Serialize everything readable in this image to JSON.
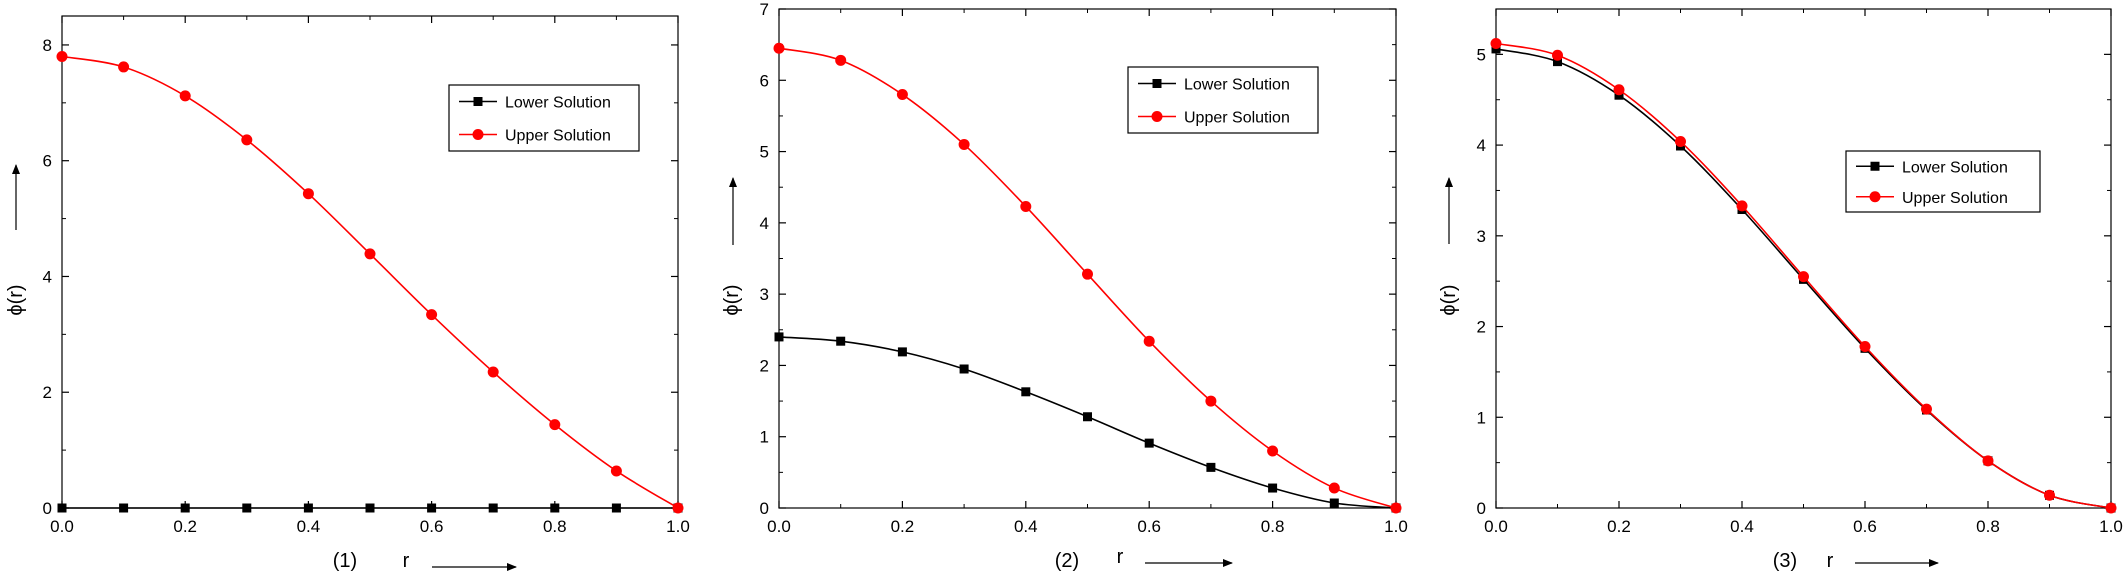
{
  "chart_data": [
    {
      "type": "line",
      "panel_label": "(1)",
      "xlabel": "r",
      "ylabel": "ϕ(r)",
      "xlim": [
        0,
        1
      ],
      "ylim": [
        0,
        8.5
      ],
      "xticks": [
        0,
        0.2,
        0.4,
        0.6,
        0.8,
        1.0
      ],
      "xtick_labels": [
        "0.0",
        "0.2",
        "0.4",
        "0.6",
        "0.8",
        "1.0"
      ],
      "yticks": [
        0,
        2,
        4,
        6,
        8
      ],
      "ytick_labels": [
        "0",
        "2",
        "4",
        "6",
        "8"
      ],
      "legend_position": "top-right",
      "x": [
        0,
        0.1,
        0.2,
        0.3,
        0.4,
        0.5,
        0.6,
        0.7,
        0.8,
        0.9,
        1.0
      ],
      "series": [
        {
          "name": "Lower Solution",
          "color": "#000000",
          "marker": "square",
          "values": [
            0,
            0,
            0,
            0,
            0,
            0,
            0,
            0,
            0,
            0,
            0
          ]
        },
        {
          "name": "Upper Solution",
          "color": "#ff0000",
          "marker": "circle",
          "values": [
            7.8,
            7.62,
            7.12,
            6.36,
            5.43,
            4.39,
            3.34,
            2.35,
            1.44,
            0.64,
            0
          ]
        }
      ]
    },
    {
      "type": "line",
      "panel_label": "(2)",
      "xlabel": "r",
      "ylabel": "ϕ(r)",
      "xlim": [
        0,
        1
      ],
      "ylim": [
        0,
        7
      ],
      "xticks": [
        0,
        0.2,
        0.4,
        0.6,
        0.8,
        1.0
      ],
      "xtick_labels": [
        "0.0",
        "0.2",
        "0.4",
        "0.6",
        "0.8",
        "1.0"
      ],
      "yticks": [
        0,
        1,
        2,
        3,
        4,
        5,
        6,
        7
      ],
      "ytick_labels": [
        "0",
        "1",
        "2",
        "3",
        "4",
        "5",
        "6",
        "7"
      ],
      "legend_position": "top-right",
      "x": [
        0,
        0.1,
        0.2,
        0.3,
        0.4,
        0.5,
        0.6,
        0.7,
        0.8,
        0.9,
        1.0
      ],
      "series": [
        {
          "name": "Lower Solution",
          "color": "#000000",
          "marker": "square",
          "values": [
            2.4,
            2.34,
            2.19,
            1.95,
            1.63,
            1.28,
            0.91,
            0.57,
            0.28,
            0.07,
            0
          ]
        },
        {
          "name": "Upper Solution",
          "color": "#ff0000",
          "marker": "circle",
          "values": [
            6.45,
            6.28,
            5.8,
            5.1,
            4.23,
            3.28,
            2.34,
            1.5,
            0.8,
            0.28,
            0
          ]
        }
      ]
    },
    {
      "type": "line",
      "panel_label": "(3)",
      "xlabel": "r",
      "ylabel": "ϕ(r)",
      "xlim": [
        0,
        1
      ],
      "ylim": [
        0,
        5.5
      ],
      "xticks": [
        0,
        0.2,
        0.4,
        0.6,
        0.8,
        1.0
      ],
      "xtick_labels": [
        "0.0",
        "0.2",
        "0.4",
        "0.6",
        "0.8",
        "1.0"
      ],
      "yticks": [
        0,
        1,
        2,
        3,
        4,
        5
      ],
      "ytick_labels": [
        "0",
        "1",
        "2",
        "3",
        "4",
        "5"
      ],
      "legend_position": "middle-right",
      "x": [
        0,
        0.1,
        0.2,
        0.3,
        0.4,
        0.5,
        0.6,
        0.7,
        0.8,
        0.9,
        1.0
      ],
      "series": [
        {
          "name": "Lower Solution",
          "color": "#000000",
          "marker": "square",
          "values": [
            5.06,
            4.92,
            4.55,
            3.99,
            3.29,
            2.52,
            1.76,
            1.08,
            0.52,
            0.14,
            0
          ]
        },
        {
          "name": "Upper Solution",
          "color": "#ff0000",
          "marker": "circle",
          "values": [
            5.12,
            4.99,
            4.61,
            4.04,
            3.33,
            2.55,
            1.78,
            1.09,
            0.52,
            0.14,
            0
          ]
        }
      ]
    }
  ]
}
